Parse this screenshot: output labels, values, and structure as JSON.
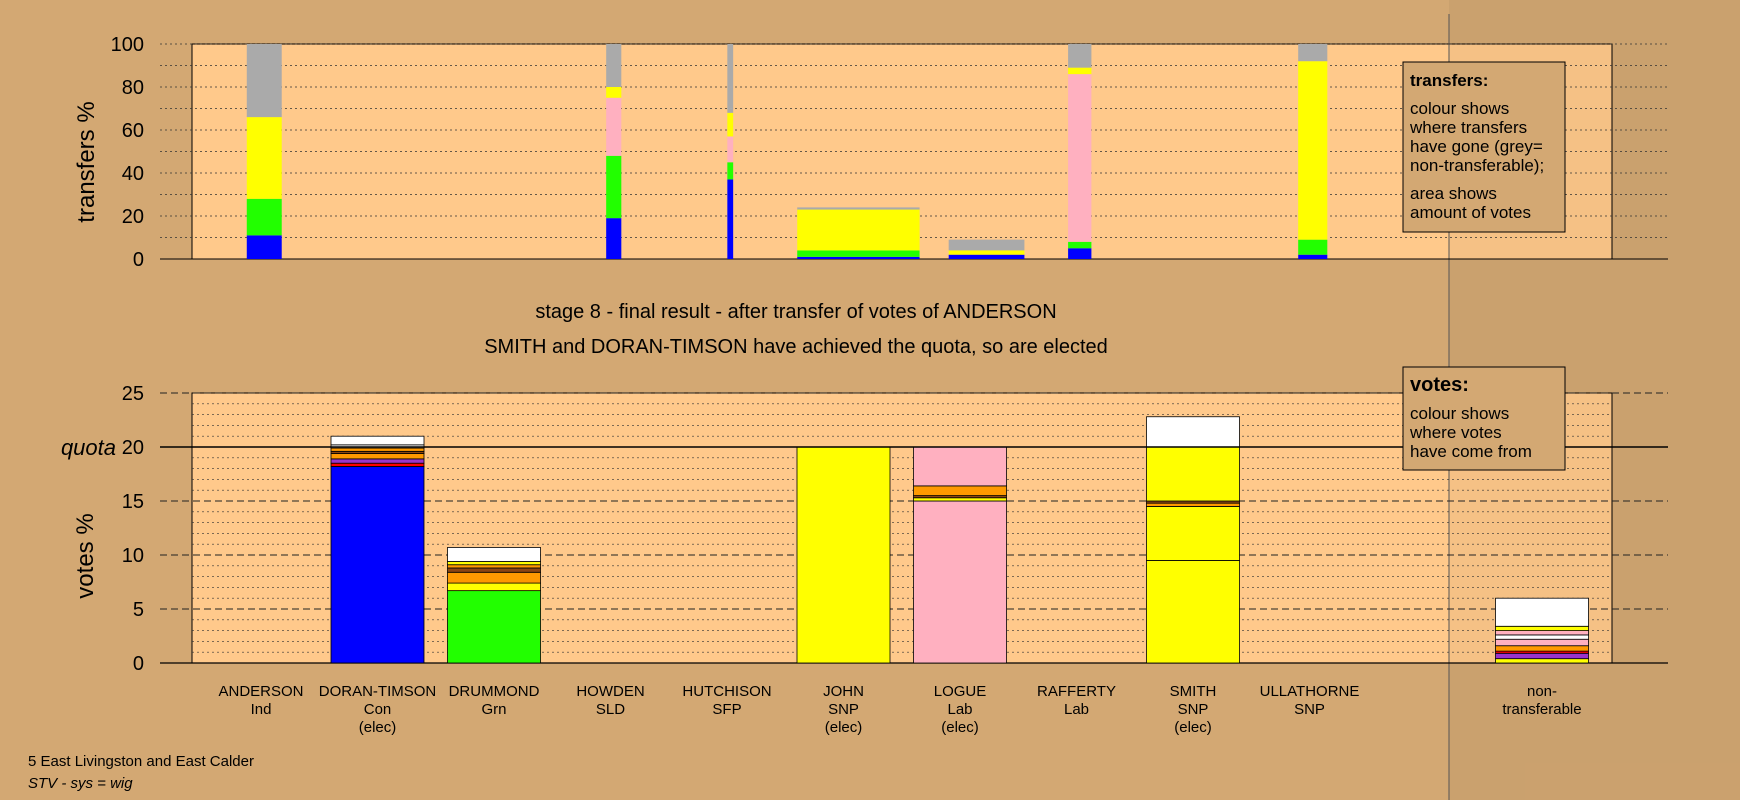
{
  "colors": {
    "background": "#d3a873",
    "plot_area": "#ffc98b",
    "Con": "#0000ff",
    "Grn": "#22ff00",
    "SNP": "#ffff00",
    "Lab": "#ffb0c0",
    "nontransferable": "#aaaaaa",
    "white": "#ffffff",
    "orange": "#ff9900",
    "brown": "#8b4513",
    "purple": "#9933cc",
    "red": "#ff0000"
  },
  "candidates": [
    {
      "name": "ANDERSON",
      "party": "Ind",
      "elected": ""
    },
    {
      "name": "DORAN-TIMSON",
      "party": "Con",
      "elected": "(elec)"
    },
    {
      "name": "DRUMMOND",
      "party": "Grn",
      "elected": ""
    },
    {
      "name": "HOWDEN",
      "party": "SLD",
      "elected": ""
    },
    {
      "name": "HUTCHISON",
      "party": "SFP",
      "elected": ""
    },
    {
      "name": "JOHN",
      "party": "SNP",
      "elected": "(elec)"
    },
    {
      "name": "LOGUE",
      "party": "Lab",
      "elected": "(elec)"
    },
    {
      "name": "RAFFERTY",
      "party": "Lab",
      "elected": ""
    },
    {
      "name": "SMITH",
      "party": "SNP",
      "elected": "(elec)"
    },
    {
      "name": "ULLATHORNE",
      "party": "SNP",
      "elected": ""
    }
  ],
  "nontransferable_label": [
    "non-",
    "transferable"
  ],
  "chart_data": [
    {
      "type": "bar",
      "ylabel": "transfers %",
      "ylim": [
        0,
        100
      ],
      "yticks": [
        0,
        20,
        40,
        60,
        80,
        100
      ],
      "grid": true,
      "stages": [
        {
          "position": 0.5,
          "width": 0.3,
          "segments": [
            {
              "color": "Con",
              "value": 11
            },
            {
              "color": "Grn",
              "value": 17
            },
            {
              "color": "SNP",
              "value": 38
            },
            {
              "color": "nontransferable",
              "value": 34
            }
          ]
        },
        {
          "position": 3.5,
          "width": 0.13,
          "segments": [
            {
              "color": "Con",
              "value": 19
            },
            {
              "color": "Grn",
              "value": 29
            },
            {
              "color": "Lab",
              "value": 27
            },
            {
              "color": "SNP",
              "value": 5
            },
            {
              "color": "nontransferable",
              "value": 20
            }
          ]
        },
        {
          "position": 4.5,
          "width": 0.05,
          "segments": [
            {
              "color": "Con",
              "value": 37
            },
            {
              "color": "Grn",
              "value": 8
            },
            {
              "color": "Lab",
              "value": 12
            },
            {
              "color": "SNP",
              "value": 11
            },
            {
              "color": "nontransferable",
              "value": 32
            }
          ]
        },
        {
          "position": 5.6,
          "width": 1.05,
          "segments": [
            {
              "color": "Con",
              "value": 1
            },
            {
              "color": "Grn",
              "value": 3
            },
            {
              "color": "SNP",
              "value": 19
            },
            {
              "color": "nontransferable",
              "value": 1
            }
          ]
        },
        {
          "position": 6.7,
          "width": 0.65,
          "segments": [
            {
              "color": "Con",
              "value": 2
            },
            {
              "color": "SNP",
              "value": 2
            },
            {
              "color": "nontransferable",
              "value": 5
            }
          ]
        },
        {
          "position": 7.5,
          "width": 0.2,
          "segments": [
            {
              "color": "Con",
              "value": 5
            },
            {
              "color": "Grn",
              "value": 3
            },
            {
              "color": "Lab",
              "value": 78
            },
            {
              "color": "SNP",
              "value": 3
            },
            {
              "color": "nontransferable",
              "value": 11
            }
          ]
        },
        {
          "position": 9.5,
          "width": 0.25,
          "segments": [
            {
              "color": "Con",
              "value": 2
            },
            {
              "color": "Grn",
              "value": 7
            },
            {
              "color": "SNP",
              "value": 83
            },
            {
              "color": "nontransferable",
              "value": 8
            }
          ]
        }
      ],
      "legend": {
        "title": "transfers:",
        "lines1": [
          "colour shows",
          "where transfers",
          "have gone (grey=",
          "non-transferable);"
        ],
        "lines2": [
          "area shows",
          "amount of votes"
        ]
      }
    },
    {
      "type": "bar",
      "ylabel": "votes %",
      "ylim": [
        0,
        25
      ],
      "yticks": [
        0,
        5,
        10,
        15,
        20,
        25
      ],
      "quota": 20,
      "quota_label": "quota",
      "grid": true,
      "categories": [
        "ANDERSON",
        "DORAN-TIMSON",
        "DRUMMOND",
        "HOWDEN",
        "HUTCHISON",
        "JOHN",
        "LOGUE",
        "RAFFERTY",
        "SMITH",
        "ULLATHORNE",
        "non-transferable"
      ],
      "stacks": [
        [],
        [
          {
            "color": "Con",
            "value": 18.2
          },
          {
            "color": "red",
            "value": 0.3
          },
          {
            "color": "purple",
            "value": 0.4
          },
          {
            "color": "orange",
            "value": 0.5
          },
          {
            "color": "brown",
            "value": 0.2
          },
          {
            "color": "orange",
            "value": 0.3
          },
          {
            "color": "white",
            "value": 0.3
          },
          {
            "color": "white",
            "value": 0.8
          }
        ],
        [
          {
            "color": "Grn",
            "value": 6.7
          },
          {
            "color": "SNP",
            "value": 0.7
          },
          {
            "color": "orange",
            "value": 1.0
          },
          {
            "color": "brown",
            "value": 0.4
          },
          {
            "color": "orange",
            "value": 0.3
          },
          {
            "color": "SNP",
            "value": 0.3
          },
          {
            "color": "white",
            "value": 1.3
          }
        ],
        [],
        [],
        [
          {
            "color": "SNP",
            "value": 20.0
          }
        ],
        [
          {
            "color": "Lab",
            "value": 15.0
          },
          {
            "color": "SNP",
            "value": 0.3
          },
          {
            "color": "brown",
            "value": 0.2
          },
          {
            "color": "orange",
            "value": 0.9
          },
          {
            "color": "Lab",
            "value": 3.6
          }
        ],
        [],
        [
          {
            "color": "SNP",
            "value": 9.5
          },
          {
            "color": "SNP",
            "value": 5.0
          },
          {
            "color": "orange",
            "value": 0.3
          },
          {
            "color": "brown",
            "value": 0.2
          },
          {
            "color": "SNP",
            "value": 5.0
          },
          {
            "color": "white",
            "value": 2.8
          }
        ],
        [],
        [
          {
            "color": "SNP",
            "value": 0.4
          },
          {
            "color": "purple",
            "value": 0.5
          },
          {
            "color": "red",
            "value": 0.2
          },
          {
            "color": "orange",
            "value": 0.5
          },
          {
            "color": "Lab",
            "value": 0.6
          },
          {
            "color": "white",
            "value": 0.4
          },
          {
            "color": "Lab",
            "value": 0.4
          },
          {
            "color": "SNP",
            "value": 0.4
          },
          {
            "color": "white",
            "value": 2.6
          }
        ]
      ],
      "legend": {
        "title": "votes:",
        "lines": [
          "colour shows",
          "where votes",
          "have come from"
        ]
      }
    }
  ],
  "titles": {
    "stage": "stage 8 - final result - after transfer of votes of ANDERSON",
    "elected": "SMITH and DORAN-TIMSON have achieved the quota, so are elected"
  },
  "footer": {
    "ward": "5 East Livingston and East Calder",
    "system": "STV - sys = wig"
  }
}
